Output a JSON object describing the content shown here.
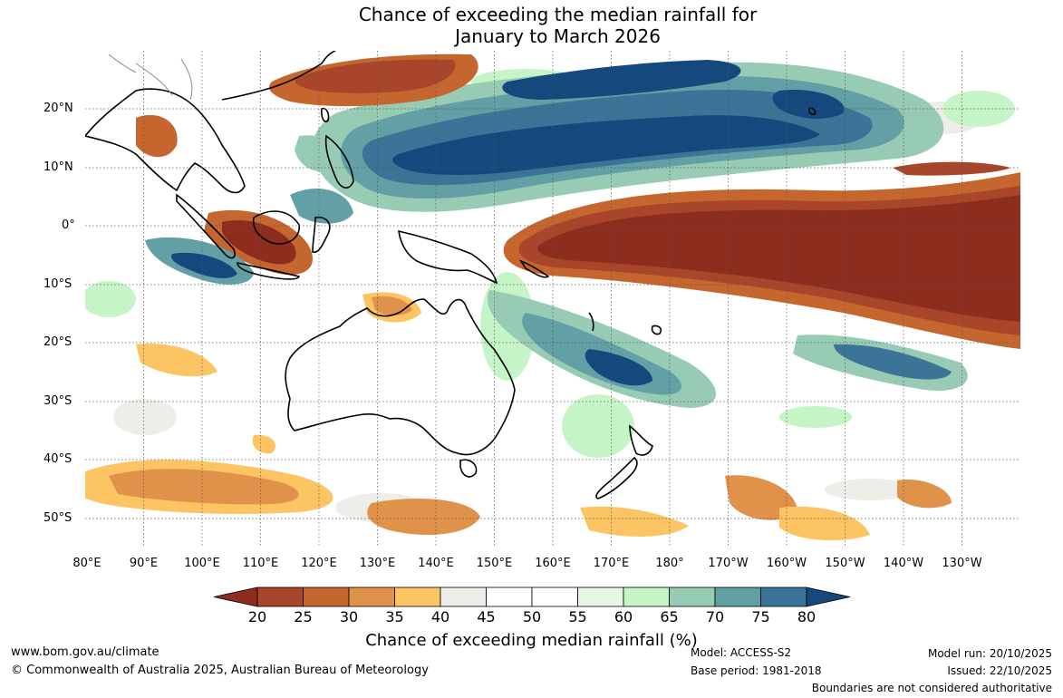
{
  "title_line1": "Chance of exceeding the median rainfall for",
  "title_line2": "January to March 2026",
  "lat_labels": [
    "20°N",
    "10°N",
    "0°",
    "10°S",
    "20°S",
    "30°S",
    "40°S",
    "50°S"
  ],
  "lon_labels": [
    "80°E",
    "90°E",
    "100°E",
    "110°E",
    "120°E",
    "130°E",
    "140°E",
    "150°E",
    "160°E",
    "170°E",
    "180°",
    "170°W",
    "160°W",
    "150°W",
    "140°W",
    "130°W"
  ],
  "colorbar": {
    "ticks": [
      "20",
      "25",
      "30",
      "35",
      "40",
      "45",
      "50",
      "55",
      "60",
      "65",
      "70",
      "75",
      "80"
    ],
    "colors": [
      "#8c2d1e",
      "#a8452a",
      "#c5662f",
      "#e0914a",
      "#fdc464",
      "#eeede8",
      "#ffffff",
      "#ffffff",
      "#e8f6e8",
      "#c5f5c6",
      "#97cbb4",
      "#62a0a5",
      "#3b7497",
      "#15497e"
    ],
    "label": "Chance of exceeding median rainfall (%)"
  },
  "footer": {
    "url": "www.bom.gov.au/climate",
    "copyright": "© Commonwealth of Australia 2025, Australian Bureau of Meteorology",
    "model": "Model: ACCESS-S2",
    "base_period": "Base period: 1981-2018",
    "model_run": "Model run: 20/10/2025",
    "issued": "Issued: 22/10/2025",
    "disclaimer": "Boundaries are not considered authoritative"
  }
}
